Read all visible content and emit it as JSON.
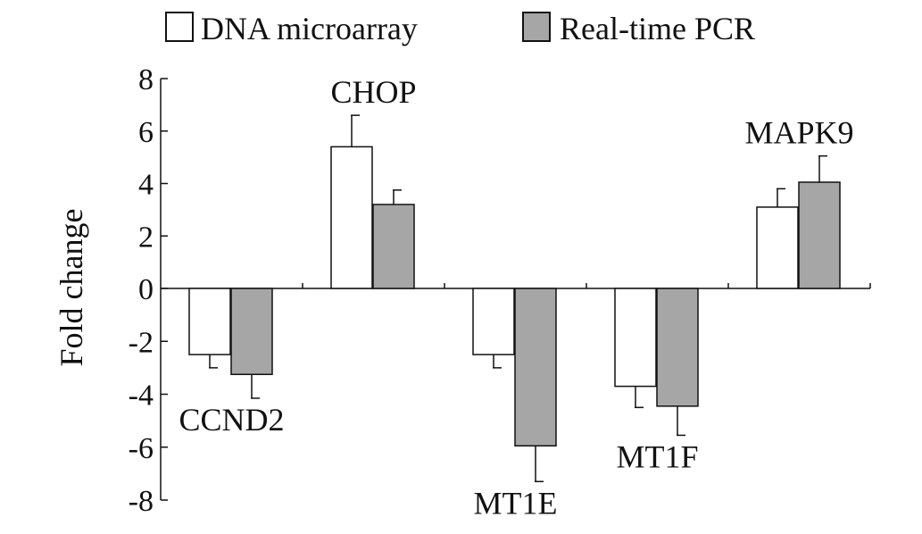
{
  "chart_data": {
    "type": "bar",
    "xlabel": "",
    "ylabel": "Fold change",
    "ylim": [
      -8,
      8
    ],
    "yticks": [
      "8",
      "6",
      "4",
      "2",
      "0",
      "-2",
      "-4",
      "-6",
      "-8"
    ],
    "ytick_values": [
      8,
      6,
      4,
      2,
      0,
      -2,
      -4,
      -6,
      -8
    ],
    "grid": false,
    "legend_position": "top",
    "categories": [
      "CCND2",
      "CHOP",
      "MT1E",
      "MT1F",
      "MAPK9"
    ],
    "series": [
      {
        "name": "DNA microarray",
        "color": "#ffffff",
        "values": [
          -2.5,
          5.4,
          -2.5,
          -3.7,
          3.1
        ],
        "error": [
          0.5,
          1.2,
          0.5,
          0.8,
          0.7
        ]
      },
      {
        "name": "Real-time PCR",
        "color": "#a6a6a6",
        "values": [
          -3.25,
          3.2,
          -5.95,
          -4.45,
          4.05
        ],
        "error": [
          0.9,
          0.55,
          1.35,
          1.1,
          1.0
        ]
      }
    ]
  }
}
